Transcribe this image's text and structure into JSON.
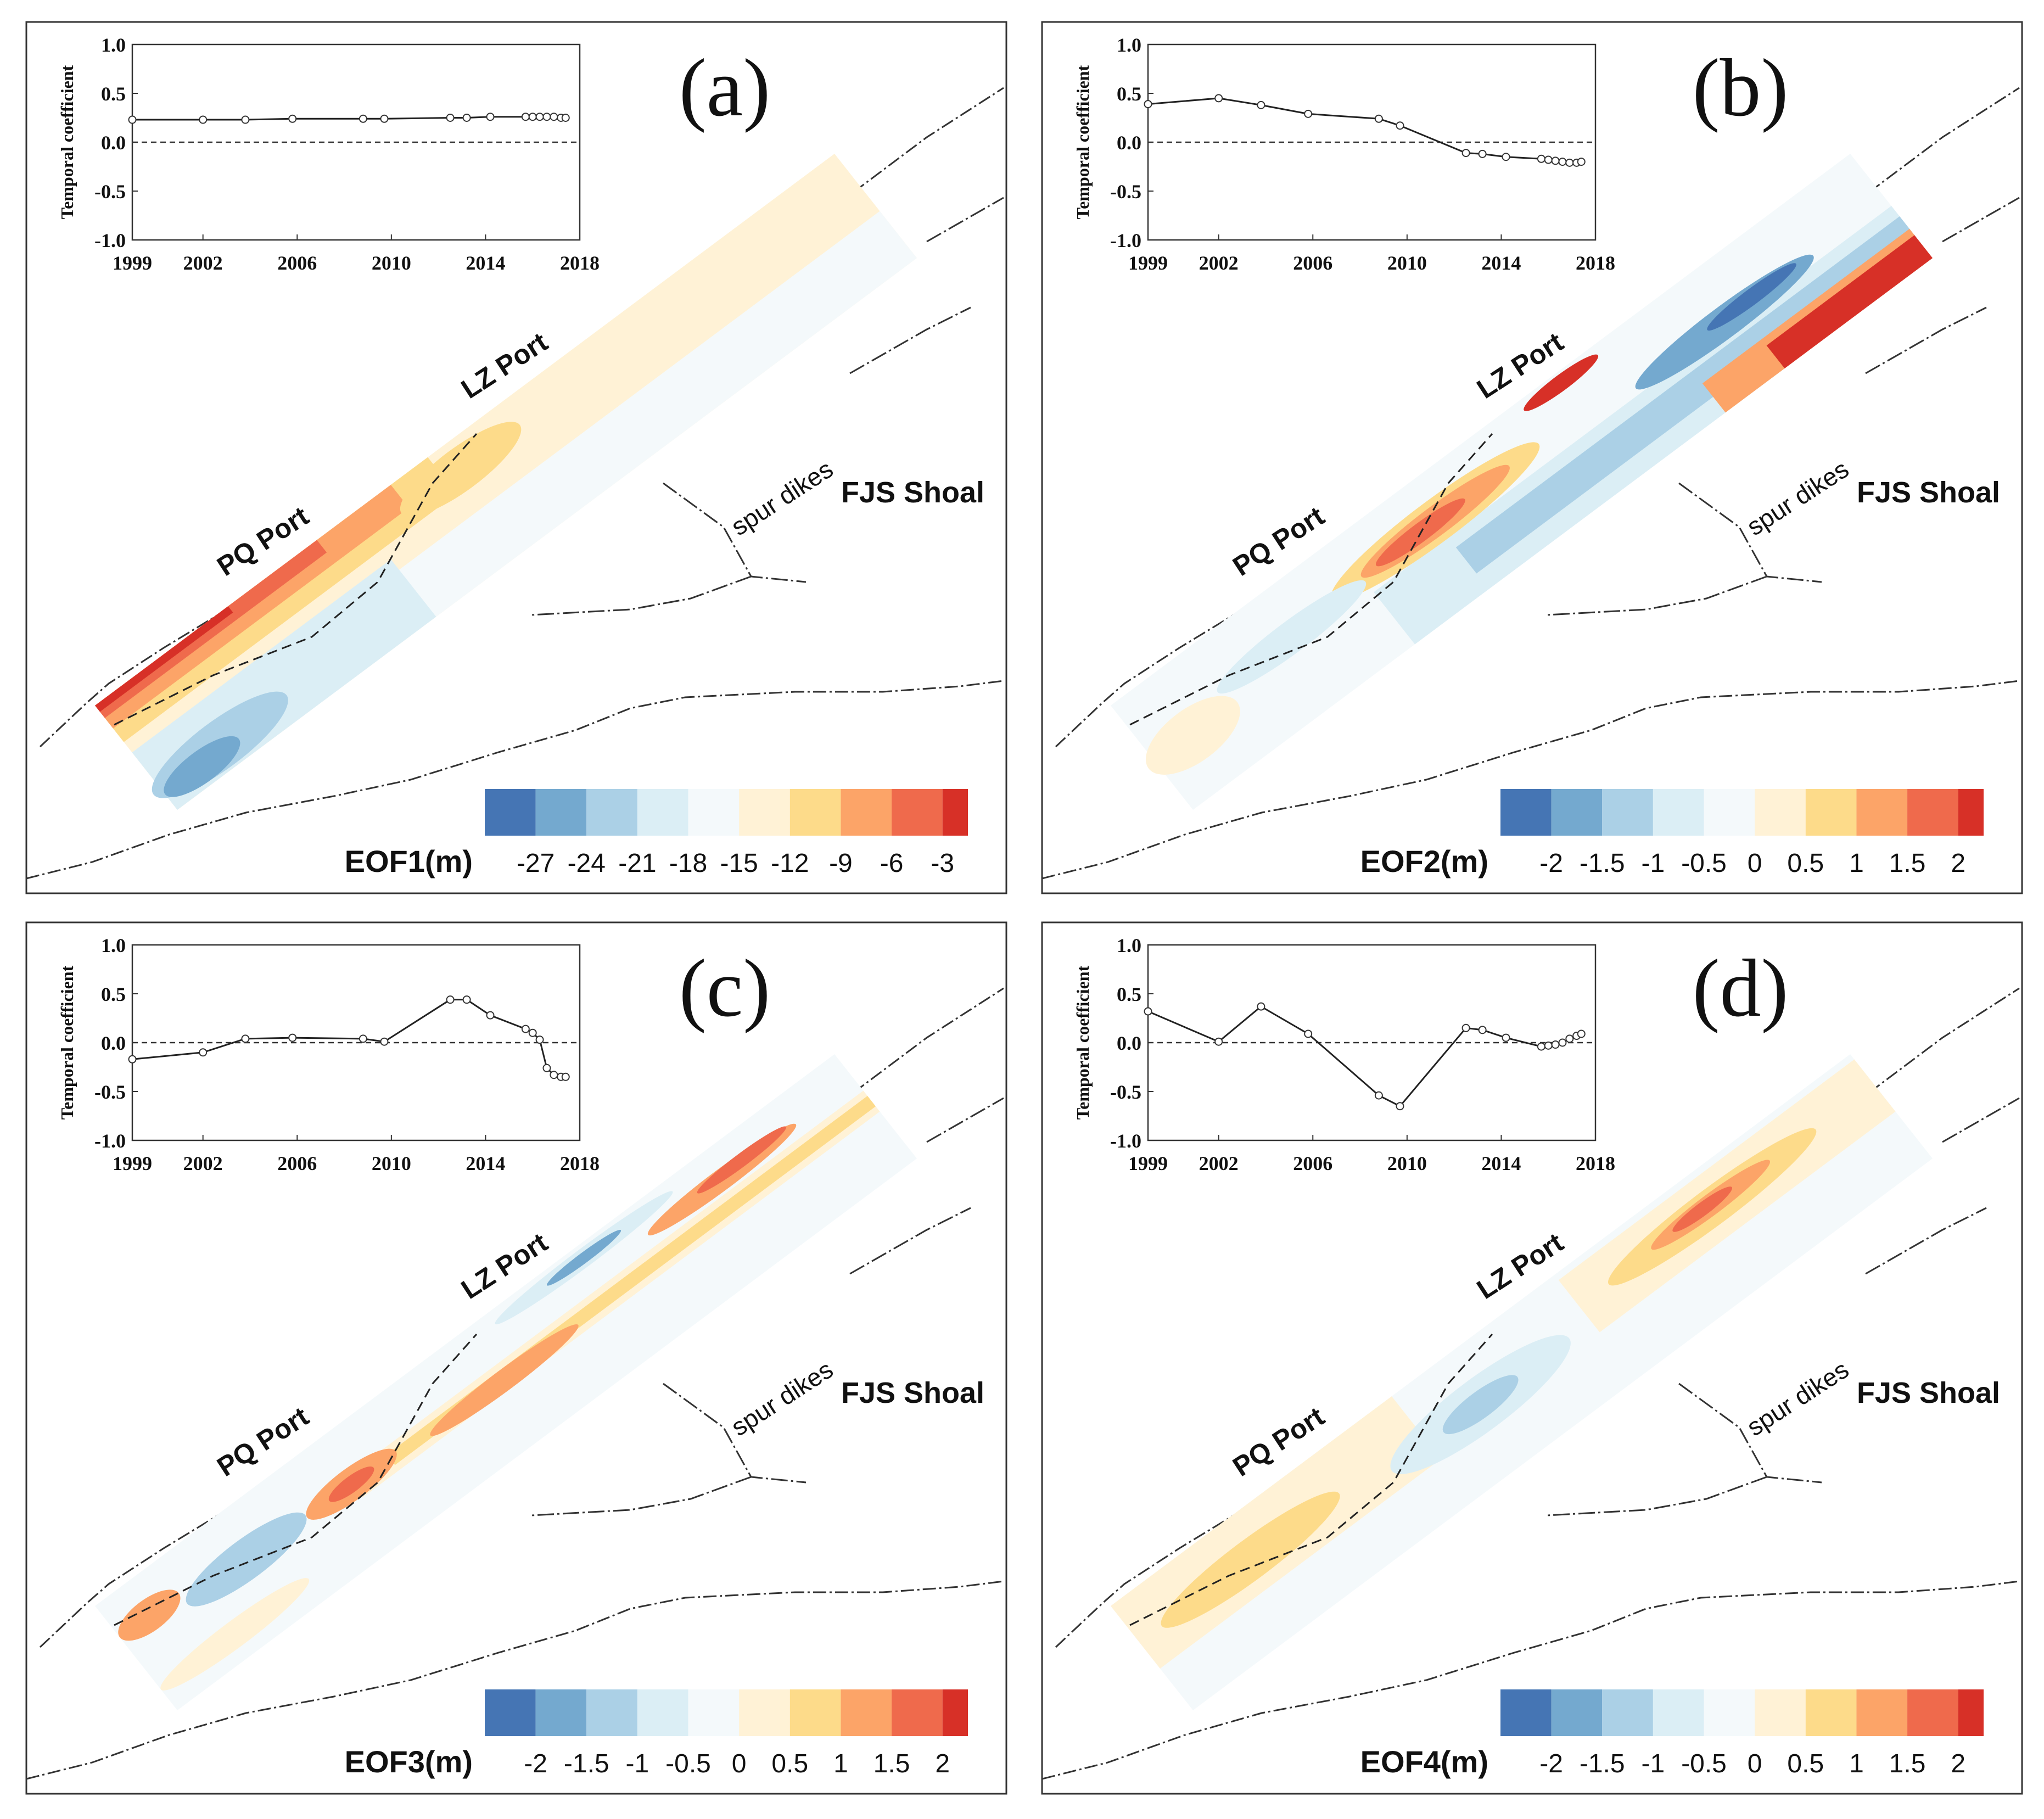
{
  "figure": {
    "colors": {
      "blue_dark": "#4575b4",
      "blue_mid": "#74a9cf",
      "blue_light": "#abd0e6",
      "blue_pale": "#dbeef5",
      "neutral": "#f4f9fb",
      "yellow_pale": "#fff2d6",
      "yellow": "#fddb8a",
      "orange": "#fca468",
      "red_orange": "#ef6a4c",
      "red": "#d73027"
    },
    "shared_labels": {
      "pq_port": "PQ Port",
      "lz_port": "LZ Port",
      "spur_dikes": "spur dikes",
      "fjs_shoal": "FJS Shoal"
    }
  },
  "chart_data": [
    {
      "type": "line",
      "panel_label": "(a)",
      "ylabel": "Temporal coefficient",
      "ylim": [
        -1.0,
        1.0
      ],
      "yticks": [
        "1.0",
        "0.5",
        "0.0",
        "-0.5",
        "-1.0"
      ],
      "xlim": [
        1999,
        2018
      ],
      "xticks": [
        "1999",
        "2002",
        "2006",
        "2010",
        "2014",
        "2018"
      ],
      "zero_line": "dashed",
      "x": [
        1999.0,
        2002.0,
        2003.8,
        2005.8,
        2008.8,
        2009.7,
        2012.5,
        2013.2,
        2014.2,
        2015.7,
        2016.0,
        2016.3,
        2016.6,
        2016.9,
        2017.2,
        2017.4
      ],
      "y": [
        0.23,
        0.23,
        0.23,
        0.24,
        0.24,
        0.24,
        0.25,
        0.25,
        0.26,
        0.26,
        0.26,
        0.26,
        0.26,
        0.26,
        0.25,
        0.25
      ],
      "colorbar": {
        "title": "EOF1(m)",
        "tick_labels": [
          "-27",
          "-24",
          "-21",
          "-18",
          "-15",
          "-12",
          "-9",
          "-6",
          "-3"
        ]
      }
    },
    {
      "type": "line",
      "panel_label": "(b)",
      "ylabel": "Temporal coefficient",
      "ylim": [
        -1.0,
        1.0
      ],
      "yticks": [
        "1.0",
        "0.5",
        "0.0",
        "-0.5",
        "-1.0"
      ],
      "xlim": [
        1999,
        2018
      ],
      "xticks": [
        "1999",
        "2002",
        "2006",
        "2010",
        "2014",
        "2018"
      ],
      "zero_line": "dashed",
      "x": [
        1999.0,
        2002.0,
        2003.8,
        2005.8,
        2008.8,
        2009.7,
        2012.5,
        2013.2,
        2014.2,
        2015.7,
        2016.0,
        2016.3,
        2016.6,
        2016.9,
        2017.2,
        2017.4
      ],
      "y": [
        0.39,
        0.45,
        0.38,
        0.29,
        0.24,
        0.17,
        -0.11,
        -0.12,
        -0.15,
        -0.17,
        -0.18,
        -0.19,
        -0.2,
        -0.21,
        -0.21,
        -0.2
      ],
      "colorbar": {
        "title": "EOF2(m)",
        "tick_labels": [
          "-2",
          "-1.5",
          "-1",
          "-0.5",
          "0",
          "0.5",
          "1",
          "1.5",
          "2"
        ]
      }
    },
    {
      "type": "line",
      "panel_label": "(c)",
      "ylabel": "Temporal coefficient",
      "ylim": [
        -1.0,
        1.0
      ],
      "yticks": [
        "1.0",
        "0.5",
        "0.0",
        "-0.5",
        "-1.0"
      ],
      "xlim": [
        1999,
        2018
      ],
      "xticks": [
        "1999",
        "2002",
        "2006",
        "2010",
        "2014",
        "2018"
      ],
      "zero_line": "dashed",
      "x": [
        1999.0,
        2002.0,
        2003.8,
        2005.8,
        2008.8,
        2009.7,
        2012.5,
        2013.2,
        2014.2,
        2015.7,
        2016.0,
        2016.3,
        2016.6,
        2016.9,
        2017.2,
        2017.4
      ],
      "y": [
        -0.17,
        -0.1,
        0.04,
        0.05,
        0.04,
        0.01,
        0.44,
        0.44,
        0.28,
        0.14,
        0.1,
        0.03,
        -0.26,
        -0.33,
        -0.35,
        -0.35
      ],
      "colorbar": {
        "title": "EOF3(m)",
        "tick_labels": [
          "-2",
          "-1.5",
          "-1",
          "-0.5",
          "0",
          "0.5",
          "1",
          "1.5",
          "2"
        ]
      }
    },
    {
      "type": "line",
      "panel_label": "(d)",
      "ylabel": "Temporal coefficient",
      "ylim": [
        -1.0,
        1.0
      ],
      "yticks": [
        "1.0",
        "0.5",
        "0.0",
        "-0.5",
        "-1.0"
      ],
      "xlim": [
        1999,
        2018
      ],
      "xticks": [
        "1999",
        "2002",
        "2006",
        "2010",
        "2014",
        "2018"
      ],
      "zero_line": "dashed",
      "x": [
        1999.0,
        2002.0,
        2003.8,
        2005.8,
        2008.8,
        2009.7,
        2012.5,
        2013.2,
        2014.2,
        2015.7,
        2016.0,
        2016.3,
        2016.6,
        2016.9,
        2017.2,
        2017.4
      ],
      "y": [
        0.32,
        0.01,
        0.37,
        0.09,
        -0.54,
        -0.65,
        0.15,
        0.13,
        0.05,
        -0.04,
        -0.03,
        -0.02,
        0.0,
        0.04,
        0.07,
        0.09
      ],
      "colorbar": {
        "title": "EOF4(m)",
        "tick_labels": [
          "-2",
          "-1.5",
          "-1",
          "-0.5",
          "0",
          "0.5",
          "1",
          "1.5",
          "2"
        ]
      }
    }
  ]
}
